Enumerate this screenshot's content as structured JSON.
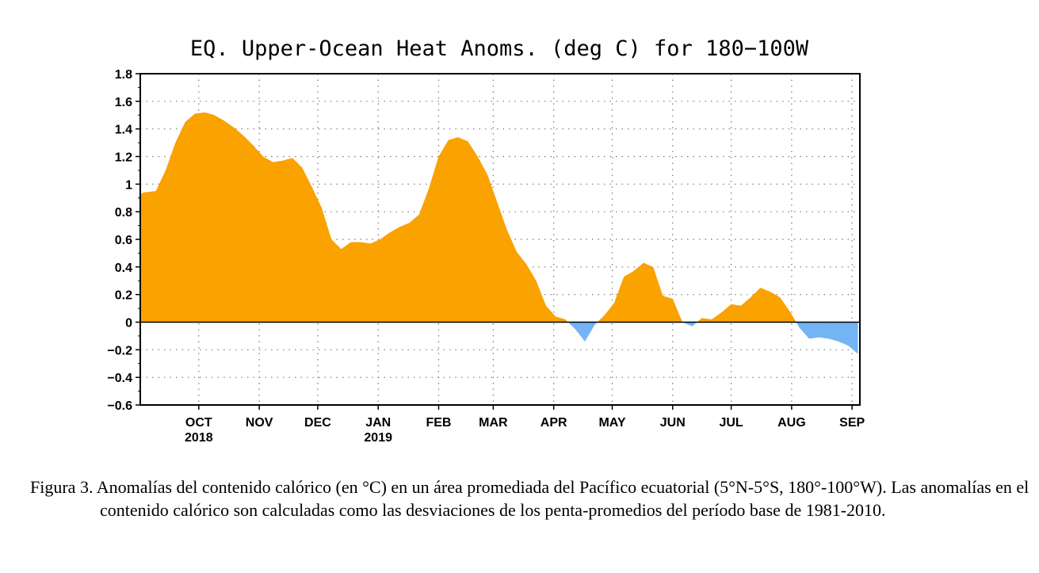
{
  "chart_data": {
    "type": "area",
    "title": "EQ. Upper-Ocean Heat Anoms. (deg C) for 180−100W",
    "xlabel": "",
    "ylabel": "",
    "ylim": [
      -0.6,
      1.8
    ],
    "y_ticks": [
      1.8,
      1.6,
      1.4,
      1.2,
      1,
      0.8,
      0.6,
      0.4,
      0.2,
      0,
      -0.2,
      -0.4,
      -0.6
    ],
    "y_tick_labels": [
      "1.8",
      "1.6",
      "1.4",
      "1.2",
      "1",
      "0.8",
      "0.6",
      "0.4",
      "0.2",
      "0",
      "−0.2",
      "−0.4",
      "−0.6"
    ],
    "xlim": [
      "2018-09-01",
      "2019-09-05"
    ],
    "x_ticks": [
      {
        "date": "2018-10-01",
        "label": "OCT",
        "sublabel": "2018"
      },
      {
        "date": "2018-11-01",
        "label": "NOV",
        "sublabel": ""
      },
      {
        "date": "2018-12-01",
        "label": "DEC",
        "sublabel": ""
      },
      {
        "date": "2019-01-01",
        "label": "JAN",
        "sublabel": "2019"
      },
      {
        "date": "2019-02-01",
        "label": "FEB",
        "sublabel": ""
      },
      {
        "date": "2019-03-01",
        "label": "MAR",
        "sublabel": ""
      },
      {
        "date": "2019-04-01",
        "label": "APR",
        "sublabel": ""
      },
      {
        "date": "2019-05-01",
        "label": "MAY",
        "sublabel": ""
      },
      {
        "date": "2019-06-01",
        "label": "JUN",
        "sublabel": ""
      },
      {
        "date": "2019-07-01",
        "label": "JUL",
        "sublabel": ""
      },
      {
        "date": "2019-08-01",
        "label": "AUG",
        "sublabel": ""
      },
      {
        "date": "2019-09-01",
        "label": "SEP",
        "sublabel": ""
      }
    ],
    "grid": true,
    "positive_color": "#f9a200",
    "negative_color": "#73b4f5",
    "series": [
      {
        "x": [
          "2018-09-01",
          "2018-09-03",
          "2018-09-09",
          "2018-09-14",
          "2018-09-19",
          "2018-09-24",
          "2018-09-29",
          "2018-10-04",
          "2018-10-09",
          "2018-10-14",
          "2018-10-19",
          "2018-10-24",
          "2018-10-29",
          "2018-11-03",
          "2018-11-08",
          "2018-11-13",
          "2018-11-18",
          "2018-11-23",
          "2018-11-28",
          "2018-12-03",
          "2018-12-08",
          "2018-12-13",
          "2018-12-18",
          "2018-12-23",
          "2018-12-28",
          "2019-01-02",
          "2019-01-07",
          "2019-01-12",
          "2019-01-17",
          "2019-01-22",
          "2019-01-27",
          "2019-02-01",
          "2019-02-06",
          "2019-02-11",
          "2019-02-16",
          "2019-02-21",
          "2019-02-26",
          "2019-03-03",
          "2019-03-08",
          "2019-03-13",
          "2019-03-18",
          "2019-03-23",
          "2019-03-28",
          "2019-04-02",
          "2019-04-07",
          "2019-04-12",
          "2019-04-17",
          "2019-04-22",
          "2019-04-27",
          "2019-05-02",
          "2019-05-07",
          "2019-05-12",
          "2019-05-17",
          "2019-05-22",
          "2019-05-27",
          "2019-06-01",
          "2019-06-06",
          "2019-06-11",
          "2019-06-16",
          "2019-06-21",
          "2019-06-26",
          "2019-07-01",
          "2019-07-06",
          "2019-07-11",
          "2019-07-16",
          "2019-07-21",
          "2019-07-26",
          "2019-07-31",
          "2019-08-05",
          "2019-08-10",
          "2019-08-15",
          "2019-08-20",
          "2019-08-25",
          "2019-08-30",
          "2019-09-04"
        ],
        "values": [
          0.93,
          0.94,
          0.95,
          1.1,
          1.3,
          1.45,
          1.51,
          1.52,
          1.5,
          1.46,
          1.41,
          1.35,
          1.28,
          1.2,
          1.16,
          1.17,
          1.19,
          1.12,
          0.98,
          0.83,
          0.6,
          0.53,
          0.58,
          0.58,
          0.57,
          0.6,
          0.65,
          0.69,
          0.72,
          0.78,
          0.97,
          1.2,
          1.32,
          1.34,
          1.31,
          1.2,
          1.07,
          0.87,
          0.67,
          0.51,
          0.42,
          0.3,
          0.12,
          0.04,
          0.02,
          -0.05,
          -0.14,
          -0.02,
          0.05,
          0.14,
          0.33,
          0.37,
          0.43,
          0.4,
          0.19,
          0.17,
          0.0,
          -0.03,
          0.03,
          0.02,
          0.07,
          0.13,
          0.12,
          0.18,
          0.25,
          0.22,
          0.18,
          0.08,
          -0.04,
          -0.12,
          -0.11,
          -0.12,
          -0.14,
          -0.17,
          -0.23
        ]
      }
    ]
  },
  "caption": {
    "text": "Figura 3. Anomalías del contenido calórico (en °C) en un área promediada del Pacífico ecuatorial (5°N-5°S, 180°-100°W). Las anomalías en el contenido calórico son calculadas como las desviaciones de los penta-promedios del período base de 1981-2010."
  }
}
